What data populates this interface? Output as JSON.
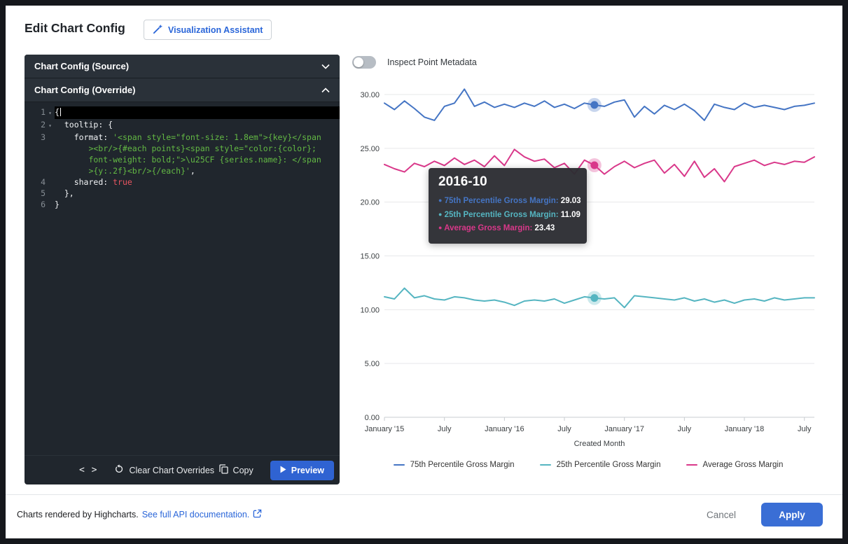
{
  "colors": {
    "series_blue": "#4575c4",
    "series_teal": "#55b5c1",
    "series_pink": "#d9388a",
    "accent_blue": "#2a66d9",
    "apply_blue": "#3a6ed5"
  },
  "header": {
    "title": "Edit Chart Config",
    "assistant_button_label": "Visualization Assistant"
  },
  "editor": {
    "source_section_title": "Chart Config (Source)",
    "override_section_title": "Chart Config (Override)",
    "lines": [
      {
        "num": "1",
        "fold": true,
        "active": true,
        "segments": [
          {
            "t": "{",
            "c": "plain"
          }
        ]
      },
      {
        "num": "2",
        "fold": true,
        "segments": [
          {
            "t": "  tooltip: {",
            "c": "plain"
          }
        ]
      },
      {
        "num": "3",
        "segments": [
          {
            "t": "    format: ",
            "c": "plain"
          },
          {
            "t": "'<span style=\"font-size: 1.8em\">{key}</span><br/>{#each points}<span style=\"color:{color}; font-weight: bold;\">\\u25CF {series.name}: </span>{y:.2f}<br/>{/each}'",
            "c": "string"
          },
          {
            "t": ",",
            "c": "plain"
          }
        ]
      },
      {
        "num": "4",
        "segments": [
          {
            "t": "    shared: ",
            "c": "plain"
          },
          {
            "t": "true",
            "c": "bool"
          }
        ]
      },
      {
        "num": "5",
        "segments": [
          {
            "t": "  },",
            "c": "plain"
          }
        ]
      },
      {
        "num": "6",
        "segments": [
          {
            "t": "}",
            "c": "plain"
          }
        ]
      }
    ],
    "toolbar": {
      "code_icon_glyph": "< >",
      "clear_label": "Clear Chart Overrides",
      "copy_label": "Copy",
      "preview_label": "Preview"
    }
  },
  "chart": {
    "toggle_label": "Inspect Point Metadata",
    "toggle_state": "off",
    "tooltip": {
      "title": "2016-10",
      "rows": [
        {
          "label": "75th Percentile Gross Margin:",
          "value": "29.03",
          "color": "#4575c4"
        },
        {
          "label": "25th Percentile Gross Margin:",
          "value": "11.09",
          "color": "#55b5c1"
        },
        {
          "label": "Average Gross Margin:",
          "value": "23.43",
          "color": "#d9388a"
        }
      ]
    },
    "legend": [
      {
        "label": "75th Percentile Gross Margin",
        "color": "#4575c4"
      },
      {
        "label": "25th Percentile Gross Margin",
        "color": "#55b5c1"
      },
      {
        "label": "Average Gross Margin",
        "color": "#d9388a"
      }
    ]
  },
  "chart_data": {
    "type": "line",
    "title": "",
    "xlabel": "Created Month",
    "ylabel": "",
    "ylim": [
      0,
      30
    ],
    "y_tick_step": 5,
    "grid": true,
    "legend_position": "bottom",
    "x": [
      "2015-01",
      "2015-02",
      "2015-03",
      "2015-04",
      "2015-05",
      "2015-06",
      "2015-07",
      "2015-08",
      "2015-09",
      "2015-10",
      "2015-11",
      "2015-12",
      "2016-01",
      "2016-02",
      "2016-03",
      "2016-04",
      "2016-05",
      "2016-06",
      "2016-07",
      "2016-08",
      "2016-09",
      "2016-10",
      "2016-11",
      "2016-12",
      "2017-01",
      "2017-02",
      "2017-03",
      "2017-04",
      "2017-05",
      "2017-06",
      "2017-07",
      "2017-08",
      "2017-09",
      "2017-10",
      "2017-11",
      "2017-12",
      "2018-01",
      "2018-02",
      "2018-03",
      "2018-04",
      "2018-05",
      "2018-06",
      "2018-07",
      "2018-08"
    ],
    "x_tick_labels": [
      {
        "index": 0,
        "label": "January '15"
      },
      {
        "index": 6,
        "label": "July"
      },
      {
        "index": 12,
        "label": "January '16"
      },
      {
        "index": 18,
        "label": "July"
      },
      {
        "index": 24,
        "label": "January '17"
      },
      {
        "index": 30,
        "label": "July"
      },
      {
        "index": 36,
        "label": "January '18"
      },
      {
        "index": 42,
        "label": "July"
      }
    ],
    "highlight_index": 21,
    "series": [
      {
        "name": "75th Percentile Gross Margin",
        "color": "#4575c4",
        "values": [
          29.2,
          28.6,
          29.4,
          28.7,
          27.9,
          27.6,
          28.9,
          29.2,
          30.5,
          28.9,
          29.3,
          28.8,
          29.1,
          28.8,
          29.2,
          28.9,
          29.4,
          28.8,
          29.1,
          28.7,
          29.2,
          29.03,
          28.9,
          29.3,
          29.5,
          27.9,
          28.9,
          28.2,
          29.0,
          28.6,
          29.1,
          28.5,
          27.6,
          29.1,
          28.8,
          28.6,
          29.2,
          28.8,
          29.0,
          28.8,
          28.6,
          28.9,
          29.0,
          29.2
        ]
      },
      {
        "name": "25th Percentile Gross Margin",
        "color": "#55b5c1",
        "values": [
          11.2,
          11.0,
          12.0,
          11.1,
          11.3,
          11.0,
          10.9,
          11.2,
          11.1,
          10.9,
          10.8,
          10.9,
          10.7,
          10.4,
          10.8,
          10.9,
          10.8,
          11.0,
          10.6,
          10.9,
          11.2,
          11.09,
          11.0,
          11.1,
          10.2,
          11.3,
          11.2,
          11.1,
          11.0,
          10.9,
          11.1,
          10.8,
          11.0,
          10.7,
          10.9,
          10.6,
          10.9,
          11.0,
          10.8,
          11.1,
          10.9,
          11.0,
          11.1,
          11.1
        ]
      },
      {
        "name": "Average Gross Margin",
        "color": "#d9388a",
        "values": [
          23.5,
          23.1,
          22.8,
          23.6,
          23.3,
          23.8,
          23.4,
          24.1,
          23.5,
          23.9,
          23.3,
          24.3,
          23.4,
          24.9,
          24.2,
          23.8,
          24.0,
          23.2,
          23.6,
          22.6,
          23.9,
          23.43,
          22.6,
          23.3,
          23.8,
          23.2,
          23.6,
          23.9,
          22.7,
          23.5,
          22.4,
          23.8,
          22.3,
          23.1,
          21.9,
          23.3,
          23.6,
          23.9,
          23.4,
          23.7,
          23.5,
          23.8,
          23.7,
          24.2
        ]
      }
    ]
  },
  "footer": {
    "credit_text": "Charts rendered by Highcharts.",
    "doc_link_label": "See full API documentation.",
    "cancel_label": "Cancel",
    "apply_label": "Apply"
  }
}
